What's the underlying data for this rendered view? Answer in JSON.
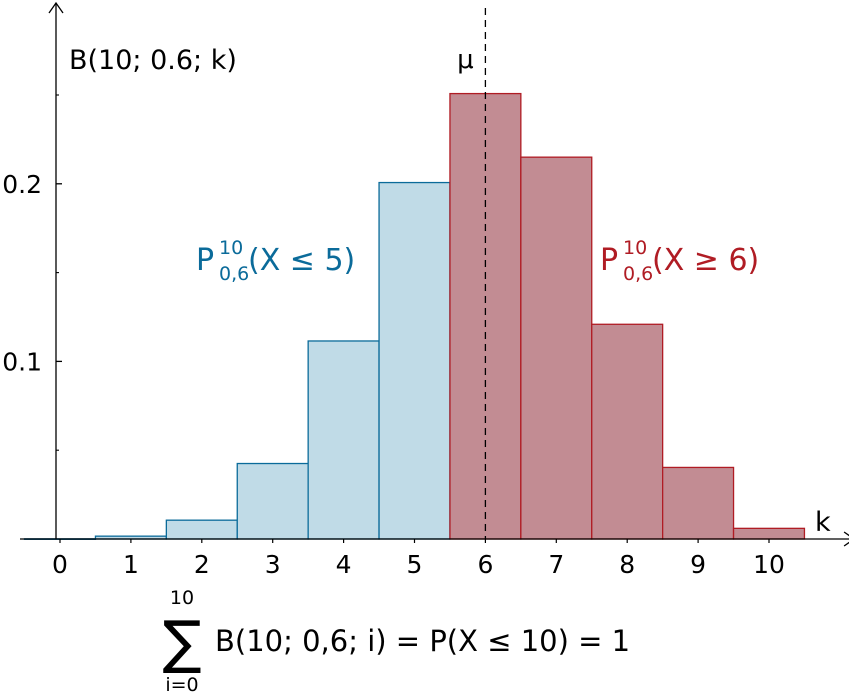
{
  "chart_data": {
    "type": "bar",
    "ylabel": "B(10; 0.6; k)",
    "xlabel": "k",
    "x": [
      0,
      1,
      2,
      3,
      4,
      5,
      6,
      7,
      8,
      9,
      10
    ],
    "values": [
      0.0001,
      0.0016,
      0.0106,
      0.0425,
      0.1115,
      0.2007,
      0.2508,
      0.215,
      0.1209,
      0.0403,
      0.006
    ],
    "xlim": [
      -0.5,
      11.2
    ],
    "ylim": [
      0,
      0.3
    ],
    "x_ticks": [
      "0",
      "1",
      "2",
      "3",
      "4",
      "5",
      "6",
      "7",
      "8",
      "9",
      "10"
    ],
    "y_ticks": [
      {
        "value": 0.1,
        "label": "0.1"
      },
      {
        "value": 0.2,
        "label": "0.2"
      }
    ],
    "y_minor_ticks": [
      0.05,
      0.15,
      0.25
    ],
    "series": [
      {
        "k_from": 0,
        "k_to": 5,
        "fill": "#c0dbe7",
        "stroke": "#0b6b9a"
      },
      {
        "k_from": 6,
        "k_to": 10,
        "fill": "#c28c93",
        "stroke": "#b01c24"
      }
    ],
    "mean_line": {
      "value": 6,
      "label": "μ"
    },
    "annotations": {
      "left": {
        "prefix": "P",
        "sup": "10",
        "sub": "0,6",
        "text": "(X ≤ 5)",
        "color": "#0b6b9a"
      },
      "right": {
        "prefix": "P",
        "sup": "10",
        "sub": "0,6",
        "text": "(X ≥ 6)",
        "color": "#b01c24"
      }
    },
    "grid": false,
    "legend": "none"
  },
  "formula": {
    "sum_symbol": "∑",
    "upper": "10",
    "lower": "i=0",
    "expression": "B(10; 0,6; i) = P(X ≤ 10) = 1"
  }
}
